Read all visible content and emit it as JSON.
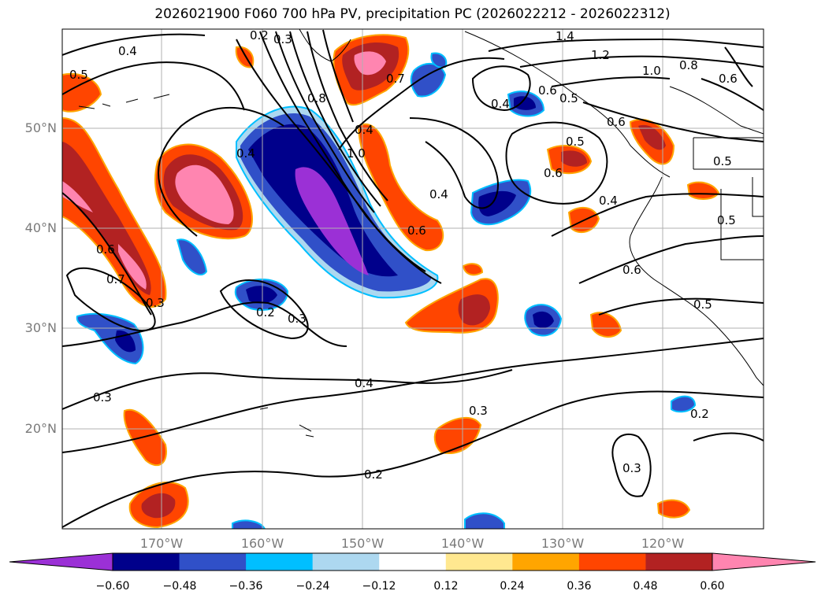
{
  "title": "2026021900 F060 700 hPa PV, precipitation PC (2026022212 - 2026022312)",
  "map": {
    "lat_labels": [
      "50°N",
      "40°N",
      "30°N",
      "20°N"
    ],
    "lat_values": [
      50,
      40,
      30,
      20
    ],
    "lon_labels": [
      "170°W",
      "160°W",
      "150°W",
      "140°W",
      "130°W",
      "120°W"
    ],
    "lon_values": [
      -170,
      -160,
      -150,
      -140,
      -130,
      -120
    ],
    "extent": {
      "lon_min": -180,
      "lon_max": -110,
      "lat_min": 10,
      "lat_max": 60
    },
    "grid": true,
    "contour_labels": [
      "1.4",
      "1.2",
      "1.0",
      "0.8",
      "0.6",
      "0.5",
      "0.4",
      "0.5",
      "0.6",
      "1.0",
      "0.7",
      "0.8",
      "0.4",
      "0.4",
      "0.5",
      "0.6",
      "0.6",
      "0.5",
      "0.6",
      "0.4",
      "0.5",
      "0.4",
      "0.6",
      "0.7",
      "0.3",
      "0.3",
      "0.2",
      "0.3",
      "0.4",
      "0.3",
      "0.5",
      "0.6",
      "0.2",
      "0.3",
      "0.2",
      "0.3",
      "0.2",
      "0.4"
    ]
  },
  "colorbar": {
    "colors": [
      "#9b30d6",
      "#00008b",
      "#3050c8",
      "#00bfff",
      "#add8f0",
      "#ffffff",
      "#ffe890",
      "#ffa500",
      "#ff4500",
      "#b22222",
      "#ff85b0"
    ],
    "tick_labels": [
      "−0.60",
      "−0.48",
      "−0.36",
      "−0.24",
      "−0.12",
      "0.12",
      "0.24",
      "0.36",
      "0.48",
      "0.60"
    ]
  }
}
